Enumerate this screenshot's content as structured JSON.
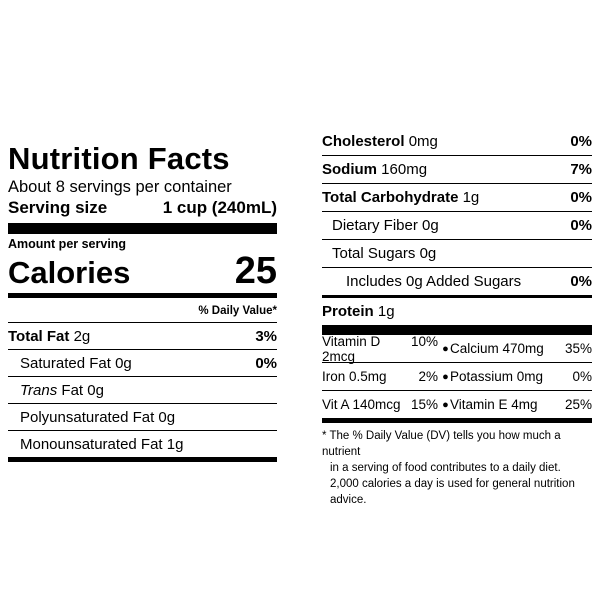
{
  "label": {
    "title": "Nutrition Facts",
    "servings_per_container": "About 8 servings per container",
    "serving_size_label": "Serving size",
    "serving_size_value": "1 cup (240mL)",
    "amount_per_serving": "Amount per serving",
    "calories_label": "Calories",
    "calories_value": "25",
    "daily_value_header": "% Daily Value*"
  },
  "left_rows": [
    {
      "bold_name": "Total Fat",
      "amount": "2g",
      "pct": "3%"
    },
    {
      "name": "Saturated Fat",
      "amount": "0g",
      "pct": "0%"
    },
    {
      "italic_name": "Trans",
      "name": "Fat",
      "amount": "0g",
      "pct": ""
    },
    {
      "name": "Polyunsaturated Fat",
      "amount": "0g",
      "pct": ""
    },
    {
      "name": "Monounsaturated Fat",
      "amount": "1g",
      "pct": ""
    }
  ],
  "right_rows": [
    {
      "bold_name": "Cholesterol",
      "amount": "0mg",
      "pct": "0%"
    },
    {
      "bold_name": "Sodium",
      "amount": "160mg",
      "pct": "7%"
    },
    {
      "bold_name": "Total Carbohydrate",
      "amount": "1g",
      "pct": "0%"
    },
    {
      "name": "Dietary Fiber",
      "amount": "0g",
      "pct": "0%"
    },
    {
      "name": "Total Sugars",
      "amount": "0g",
      "pct": ""
    },
    {
      "name": "Includes 0g Added Sugars",
      "amount": "",
      "pct": "0%"
    },
    {
      "bold_name": "Protein",
      "amount": "1g",
      "pct": ""
    }
  ],
  "vitamins": [
    {
      "left_name": "Vitamin D 2mcg",
      "left_pct": "10%",
      "right_name": "Calcium 470mg",
      "right_pct": "35%"
    },
    {
      "left_name": "Iron 0.5mg",
      "left_pct": "2%",
      "right_name": "Potassium 0mg",
      "right_pct": "0%"
    },
    {
      "left_name": "Vit A 140mcg",
      "left_pct": "15%",
      "right_name": "Vitamin E 4mg",
      "right_pct": "25%"
    }
  ],
  "bullet": "●",
  "footnote": {
    "line1": "* The % Daily Value (DV) tells you how much a nutrient",
    "line2": "in a serving of food contributes to a daily diet.",
    "line3": "2,000 calories a day is used for general nutrition advice."
  }
}
